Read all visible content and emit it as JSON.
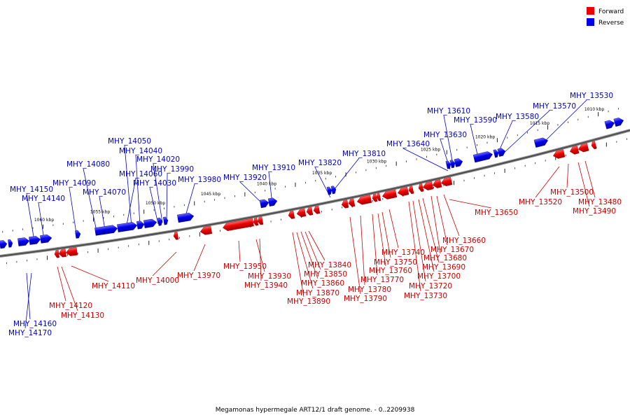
{
  "caption": "Megamonas hypermegale ART12/1 draft genome. - 0..2209938",
  "legend": [
    {
      "label": "Forward",
      "color": "#ee0000"
    },
    {
      "label": "Reverse",
      "color": "#0000ee"
    }
  ],
  "ticks": [
    {
      "label": "1060 kbp"
    },
    {
      "label": "1055 kbp"
    },
    {
      "label": "1050 kbp"
    },
    {
      "label": "1045 kbp"
    },
    {
      "label": "1040 kbp"
    },
    {
      "label": "1035 kbp"
    },
    {
      "label": "1030 kbp"
    },
    {
      "label": "1025 kbp"
    },
    {
      "label": "1020 kbp"
    },
    {
      "label": "1015 kbp"
    },
    {
      "label": "1010 kbp"
    }
  ],
  "reverse_labels": [
    "MHY_14150",
    "MHY_14140",
    "MHY_14090",
    "MHY_14080",
    "MHY_14070",
    "MHY_14060",
    "MHY_14050",
    "MHY_14040",
    "MHY_14030",
    "MHY_14020",
    "MHY_13990",
    "MHY_13980",
    "MHY_13920",
    "MHY_13910",
    "MHY_13820",
    "MHY_13810",
    "MHY_13640",
    "MHY_13630",
    "MHY_13610",
    "MHY_13590",
    "MHY_13580",
    "MHY_13570",
    "MHY_13530",
    "MHY_14160",
    "MHY_14170"
  ],
  "forward_labels": [
    "MHY_14110",
    "MHY_14120",
    "MHY_14130",
    "MHY_14000",
    "MHY_13970",
    "MHY_13950",
    "MHY_13930",
    "MHY_13940",
    "MHY_13840",
    "MHY_13850",
    "MHY_13860",
    "MHY_13870",
    "MHY_13890",
    "MHY_13740",
    "MHY_13750",
    "MHY_13760",
    "MHY_13770",
    "MHY_13780",
    "MHY_13790",
    "MHY_13680",
    "MHY_13690",
    "MHY_13700",
    "MHY_13720",
    "MHY_13730",
    "MHY_13660",
    "MHY_13670",
    "MHY_13650",
    "MHY_13520",
    "MHY_13500",
    "MHY_13480",
    "MHY_13490"
  ]
}
